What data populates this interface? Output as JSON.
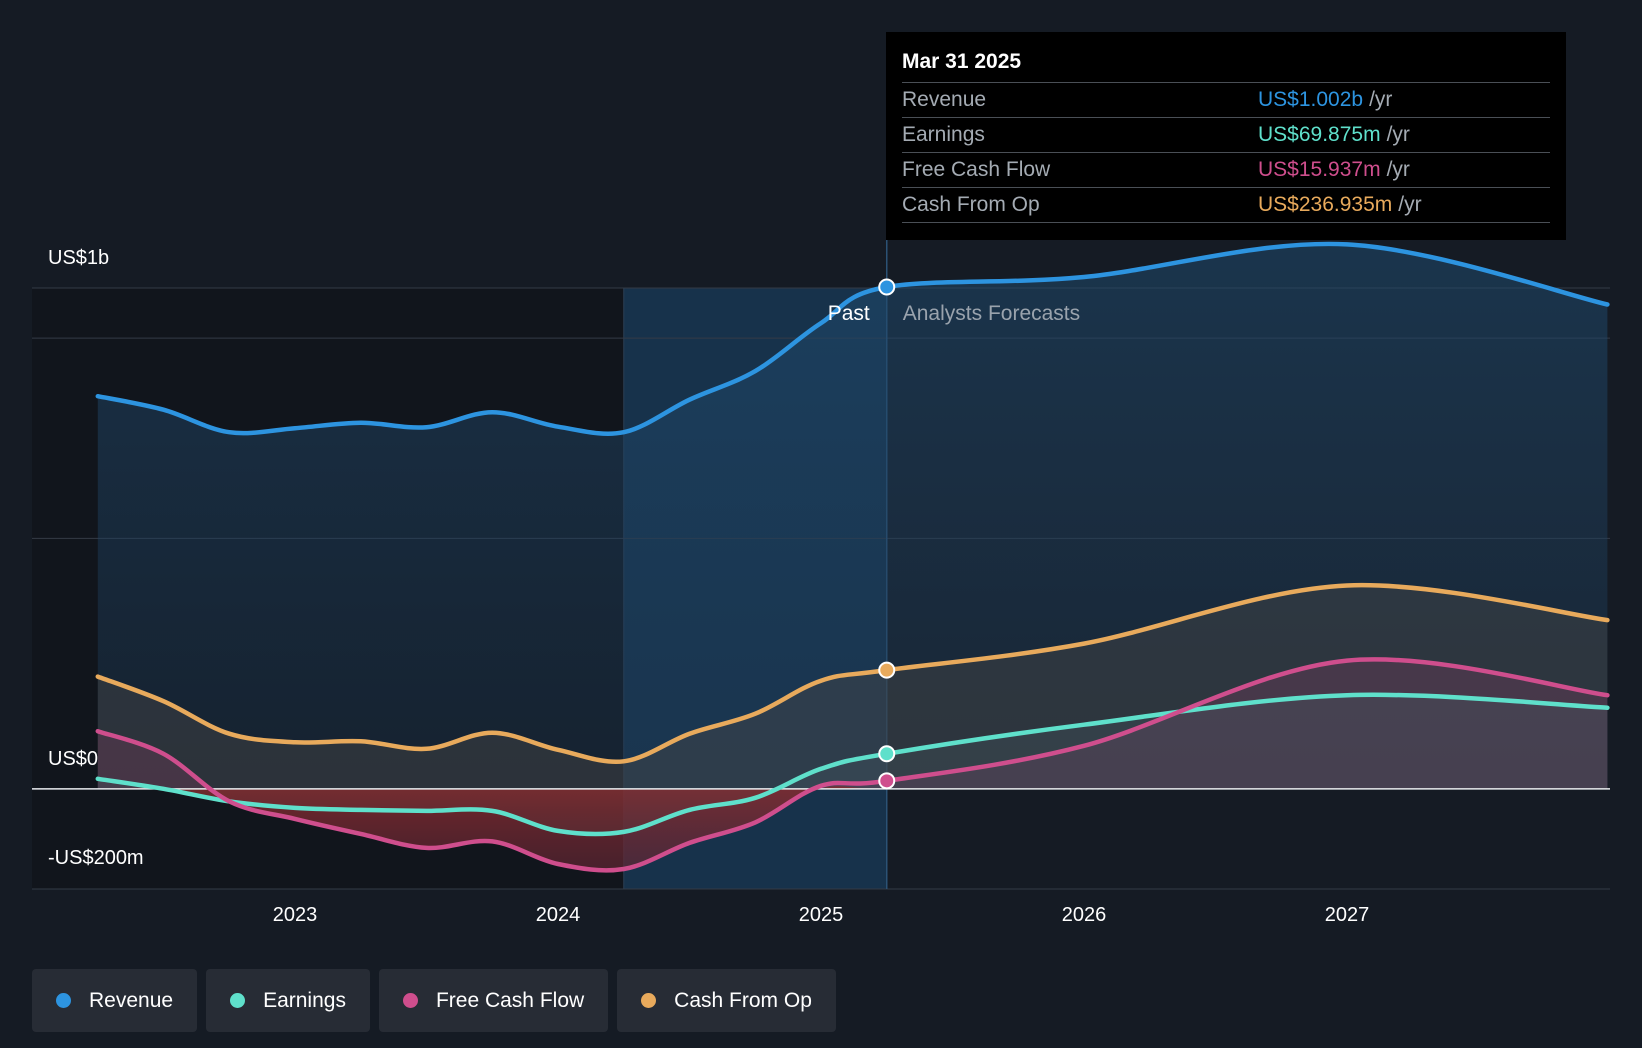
{
  "chart_data": {
    "type": "area",
    "x": [
      "Apr 2022",
      "Jul 2022",
      "Oct 2022",
      "Jan 2023",
      "Apr 2023",
      "Jul 2023",
      "Oct 2023",
      "Jan 2024",
      "Apr 2024",
      "Jul 2024",
      "Oct 2024",
      "Jan 2025",
      "Mar 2025",
      "Jan 2026",
      "Dec 2026",
      "Dec 2027"
    ],
    "xnum": [
      2022.25,
      2022.5,
      2022.75,
      2023.0,
      2023.25,
      2023.5,
      2023.75,
      2024.0,
      2024.25,
      2024.5,
      2024.75,
      2025.0,
      2025.25,
      2026.0,
      2027.0,
      2027.99
    ],
    "series": [
      {
        "name": "Revenue",
        "color": "#2d94e0",
        "values": [
          0.784,
          0.757,
          0.712,
          0.72,
          0.731,
          0.722,
          0.752,
          0.723,
          0.712,
          0.777,
          0.834,
          0.93,
          1.002,
          1.022,
          1.087,
          0.967
        ]
      },
      {
        "name": "Earnings",
        "color": "#5fe0cb",
        "values": [
          0.02,
          0.0,
          -0.025,
          -0.038,
          -0.042,
          -0.044,
          -0.044,
          -0.084,
          -0.086,
          -0.042,
          -0.018,
          0.04,
          0.07,
          0.128,
          0.187,
          0.162
        ]
      },
      {
        "name": "Free Cash Flow",
        "color": "#cf4e8d",
        "values": [
          0.115,
          0.07,
          -0.025,
          -0.06,
          -0.09,
          -0.118,
          -0.105,
          -0.15,
          -0.16,
          -0.108,
          -0.067,
          0.006,
          0.016,
          0.086,
          0.256,
          0.187
        ]
      },
      {
        "name": "Cash From Op",
        "color": "#e8aa5c",
        "values": [
          0.224,
          0.175,
          0.11,
          0.093,
          0.095,
          0.08,
          0.112,
          0.078,
          0.055,
          0.11,
          0.15,
          0.216,
          0.237,
          0.29,
          0.406,
          0.337
        ]
      }
    ],
    "past_split": 2025.25,
    "shade_start": 2024.25,
    "ylim": [
      -0.2,
      1.0
    ],
    "xlim": [
      2022.0,
      2028.0
    ],
    "yticks": [
      {
        "value": 1.0,
        "label": "US$1b"
      },
      {
        "value": 0.0,
        "label": "US$0"
      },
      {
        "value": -0.2,
        "label": "-US$200m"
      }
    ],
    "xticks": [
      {
        "value": 2023,
        "label": "2023"
      },
      {
        "value": 2024,
        "label": "2024"
      },
      {
        "value": 2025,
        "label": "2025"
      },
      {
        "value": 2026,
        "label": "2026"
      },
      {
        "value": 2027,
        "label": "2027"
      }
    ],
    "period_labels": {
      "past": "Past",
      "forecast": "Analysts Forecasts"
    },
    "units": "US$ billions"
  },
  "tooltip": {
    "date": "Mar 31 2025",
    "rows": [
      {
        "name": "Revenue",
        "value": "US$1.002b",
        "unit": "/yr",
        "color": "#2d94e0"
      },
      {
        "name": "Earnings",
        "value": "US$69.875m",
        "unit": "/yr",
        "color": "#5fe0cb"
      },
      {
        "name": "Free Cash Flow",
        "value": "US$15.937m",
        "unit": "/yr",
        "color": "#cf4e8d"
      },
      {
        "name": "Cash From Op",
        "value": "US$236.935m",
        "unit": "/yr",
        "color": "#e8aa5c"
      }
    ]
  },
  "legend": [
    {
      "label": "Revenue",
      "color": "#2d94e0"
    },
    {
      "label": "Earnings",
      "color": "#5fe0cb"
    },
    {
      "label": "Free Cash Flow",
      "color": "#cf4e8d"
    },
    {
      "label": "Cash From Op",
      "color": "#e8aa5c"
    }
  ]
}
